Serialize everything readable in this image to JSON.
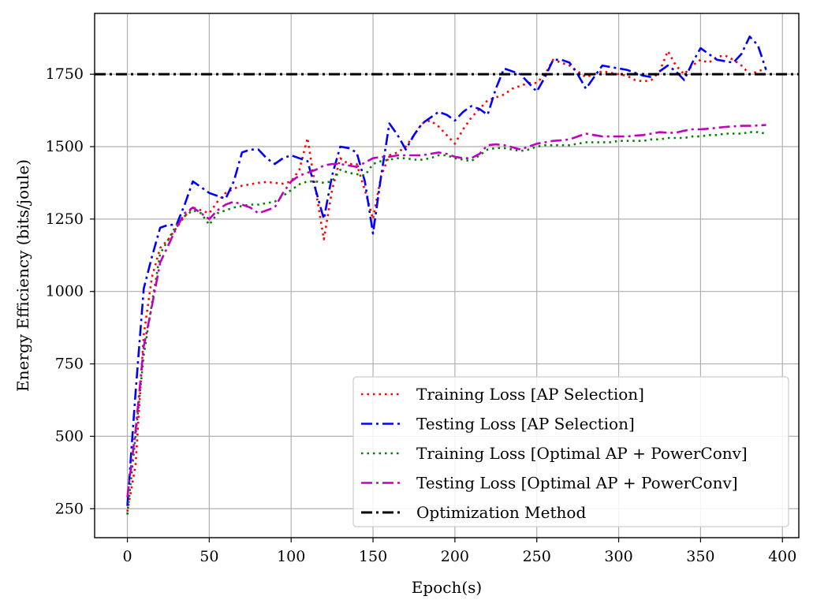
{
  "chart_data": {
    "type": "line",
    "xlabel": "Epoch(s)",
    "ylabel": "Energy Efficiency (bits/joule)",
    "xlim": [
      -20,
      410
    ],
    "ylim": [
      150,
      1960
    ],
    "xticks": [
      0,
      50,
      100,
      150,
      200,
      250,
      300,
      350,
      400
    ],
    "yticks": [
      250,
      500,
      750,
      1000,
      1250,
      1500,
      1750
    ],
    "grid": true,
    "legend_position": "lower-right",
    "series": [
      {
        "name": "Training Loss [AP Selection]",
        "color": "#ff0000",
        "dash": "dotted",
        "x": [
          0,
          5,
          10,
          15,
          20,
          25,
          30,
          35,
          40,
          45,
          50,
          55,
          60,
          65,
          70,
          75,
          80,
          85,
          90,
          95,
          100,
          105,
          110,
          115,
          120,
          125,
          130,
          135,
          140,
          145,
          150,
          155,
          160,
          165,
          170,
          175,
          180,
          185,
          190,
          195,
          200,
          205,
          210,
          215,
          220,
          225,
          230,
          235,
          240,
          245,
          250,
          255,
          260,
          265,
          270,
          275,
          280,
          285,
          290,
          295,
          300,
          305,
          310,
          315,
          320,
          325,
          330,
          335,
          340,
          345,
          350,
          355,
          360,
          365,
          370,
          375,
          380,
          385,
          390
        ],
        "values": [
          240,
          400,
          850,
          1050,
          1150,
          1180,
          1220,
          1260,
          1290,
          1280,
          1270,
          1310,
          1340,
          1355,
          1365,
          1370,
          1375,
          1378,
          1375,
          1372,
          1380,
          1420,
          1530,
          1350,
          1180,
          1350,
          1460,
          1440,
          1440,
          1350,
          1250,
          1400,
          1470,
          1480,
          1500,
          1540,
          1580,
          1590,
          1570,
          1540,
          1510,
          1560,
          1600,
          1630,
          1660,
          1670,
          1680,
          1700,
          1710,
          1720,
          1720,
          1750,
          1800,
          1790,
          1780,
          1760,
          1740,
          1750,
          1760,
          1755,
          1750,
          1745,
          1730,
          1725,
          1730,
          1760,
          1830,
          1780,
          1750,
          1780,
          1800,
          1790,
          1810,
          1815,
          1800,
          1780,
          1750,
          1760,
          1770
        ]
      },
      {
        "name": "Testing Loss [AP Selection]",
        "color": "#0000ff",
        "dash": "dashdot",
        "x": [
          0,
          5,
          10,
          15,
          20,
          25,
          30,
          35,
          40,
          45,
          50,
          55,
          60,
          65,
          70,
          75,
          80,
          85,
          90,
          95,
          100,
          105,
          110,
          115,
          120,
          125,
          130,
          135,
          140,
          145,
          150,
          155,
          160,
          165,
          170,
          175,
          180,
          185,
          190,
          195,
          200,
          205,
          210,
          215,
          220,
          225,
          230,
          235,
          240,
          245,
          250,
          255,
          260,
          265,
          270,
          275,
          280,
          285,
          290,
          295,
          300,
          305,
          310,
          315,
          320,
          325,
          330,
          335,
          340,
          345,
          350,
          355,
          360,
          365,
          370,
          375,
          380,
          385,
          390
        ],
        "values": [
          260,
          650,
          1010,
          1120,
          1220,
          1230,
          1230,
          1300,
          1380,
          1360,
          1340,
          1330,
          1320,
          1380,
          1480,
          1490,
          1490,
          1460,
          1440,
          1460,
          1470,
          1460,
          1450,
          1350,
          1250,
          1400,
          1500,
          1495,
          1480,
          1380,
          1200,
          1400,
          1580,
          1540,
          1490,
          1540,
          1580,
          1600,
          1620,
          1610,
          1590,
          1620,
          1640,
          1630,
          1610,
          1700,
          1770,
          1760,
          1750,
          1720,
          1690,
          1740,
          1800,
          1800,
          1790,
          1750,
          1700,
          1740,
          1780,
          1775,
          1770,
          1765,
          1755,
          1745,
          1740,
          1760,
          1780,
          1760,
          1730,
          1790,
          1840,
          1820,
          1800,
          1795,
          1790,
          1820,
          1880,
          1850,
          1765
        ]
      },
      {
        "name": "Training Loss [Optimal AP + PowerConv]",
        "color": "#008000",
        "dash": "dotted",
        "x": [
          0,
          5,
          10,
          15,
          20,
          25,
          30,
          35,
          40,
          45,
          50,
          55,
          60,
          65,
          70,
          75,
          80,
          85,
          90,
          95,
          100,
          105,
          110,
          115,
          120,
          125,
          130,
          135,
          140,
          145,
          150,
          155,
          160,
          165,
          170,
          175,
          180,
          185,
          190,
          195,
          200,
          205,
          210,
          215,
          220,
          225,
          230,
          235,
          240,
          245,
          250,
          255,
          260,
          265,
          270,
          275,
          280,
          285,
          290,
          295,
          300,
          305,
          310,
          315,
          320,
          325,
          330,
          335,
          340,
          345,
          350,
          355,
          360,
          365,
          370,
          375,
          380,
          385,
          390
        ],
        "values": [
          230,
          500,
          780,
          960,
          1130,
          1180,
          1230,
          1260,
          1280,
          1270,
          1230,
          1270,
          1280,
          1290,
          1295,
          1300,
          1300,
          1305,
          1310,
          1330,
          1350,
          1370,
          1380,
          1380,
          1375,
          1380,
          1420,
          1410,
          1405,
          1400,
          1440,
          1450,
          1455,
          1460,
          1460,
          1455,
          1455,
          1460,
          1470,
          1470,
          1460,
          1455,
          1450,
          1470,
          1490,
          1495,
          1495,
          1490,
          1485,
          1490,
          1500,
          1505,
          1505,
          1505,
          1505,
          1510,
          1515,
          1515,
          1515,
          1515,
          1520,
          1520,
          1520,
          1520,
          1525,
          1525,
          1530,
          1530,
          1530,
          1535,
          1535,
          1540,
          1540,
          1545,
          1545,
          1545,
          1550,
          1550,
          1545
        ]
      },
      {
        "name": "Testing Loss [Optimal AP + PowerConv]",
        "color": "#bf00bf",
        "dash": "dashdot",
        "x": [
          0,
          5,
          10,
          15,
          20,
          25,
          30,
          35,
          40,
          45,
          50,
          55,
          60,
          65,
          70,
          75,
          80,
          85,
          90,
          95,
          100,
          105,
          110,
          115,
          120,
          125,
          130,
          135,
          140,
          145,
          150,
          155,
          160,
          165,
          170,
          175,
          180,
          185,
          190,
          195,
          200,
          205,
          210,
          215,
          220,
          225,
          230,
          235,
          240,
          245,
          250,
          255,
          260,
          265,
          270,
          275,
          280,
          285,
          290,
          295,
          300,
          305,
          310,
          315,
          320,
          325,
          330,
          335,
          340,
          345,
          350,
          355,
          360,
          365,
          370,
          375,
          380,
          385,
          390
        ],
        "values": [
          290,
          520,
          810,
          950,
          1100,
          1160,
          1220,
          1270,
          1290,
          1270,
          1250,
          1280,
          1300,
          1310,
          1300,
          1290,
          1270,
          1280,
          1290,
          1340,
          1380,
          1400,
          1410,
          1420,
          1435,
          1440,
          1440,
          1435,
          1430,
          1445,
          1460,
          1465,
          1465,
          1470,
          1470,
          1470,
          1470,
          1475,
          1480,
          1475,
          1465,
          1460,
          1460,
          1475,
          1505,
          1508,
          1505,
          1498,
          1490,
          1500,
          1510,
          1515,
          1520,
          1522,
          1525,
          1535,
          1545,
          1540,
          1535,
          1535,
          1535,
          1535,
          1538,
          1540,
          1545,
          1550,
          1548,
          1548,
          1555,
          1560,
          1560,
          1562,
          1565,
          1568,
          1570,
          1572,
          1572,
          1573,
          1575
        ]
      },
      {
        "name": "Optimization Method",
        "color": "#000000",
        "dash": "dashdot",
        "type": "hline",
        "value": 1750
      }
    ]
  }
}
